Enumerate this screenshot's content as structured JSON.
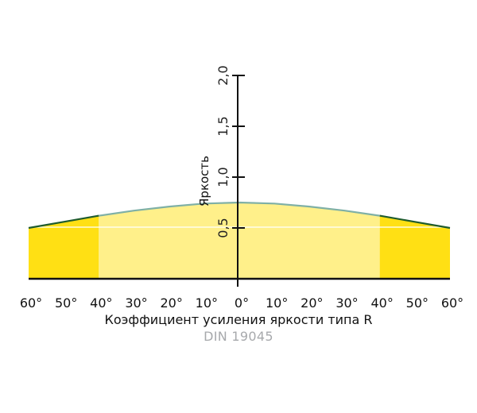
{
  "chart_data": {
    "type": "area",
    "ylabel": "Яркость",
    "xlabel": "Коэффициент усиления яркости типа R",
    "subtitle": "DIN 19045",
    "y_ticks": [
      "0,5",
      "1,0",
      "1,5",
      "2,0"
    ],
    "y_tick_values": [
      0.5,
      1.0,
      1.5,
      2.0
    ],
    "ylim": [
      0,
      2.0
    ],
    "xlim": [
      -60,
      60
    ],
    "x_tick_labels": [
      "60°",
      "50°",
      "40°",
      "30°",
      "20°",
      "10°",
      "0°",
      "10°",
      "20°",
      "30°",
      "40°",
      "50°",
      "60°"
    ],
    "x_tick_values": [
      -60,
      -50,
      -40,
      -30,
      -20,
      -10,
      0,
      10,
      20,
      30,
      40,
      50,
      60
    ],
    "series": [
      {
        "x": [
          -60,
          -50,
          -40,
          -30,
          -20,
          -10,
          0,
          10,
          20,
          30,
          40,
          50,
          60
        ],
        "values": [
          0.5,
          0.56,
          0.62,
          0.67,
          0.71,
          0.74,
          0.75,
          0.74,
          0.71,
          0.67,
          0.62,
          0.56,
          0.5
        ]
      }
    ],
    "regions": [
      {
        "from": -60,
        "to": -40,
        "color": "#ffe014",
        "outline": "#1e5b2e"
      },
      {
        "from": -40,
        "to": 40,
        "color": "#fff08a",
        "outline": "#7fb0a6"
      },
      {
        "from": 40,
        "to": 60,
        "color": "#ffe014",
        "outline": "#1e5b2e"
      }
    ],
    "colors": {
      "axis": "#111111",
      "reference_line": "#ffffff"
    }
  }
}
